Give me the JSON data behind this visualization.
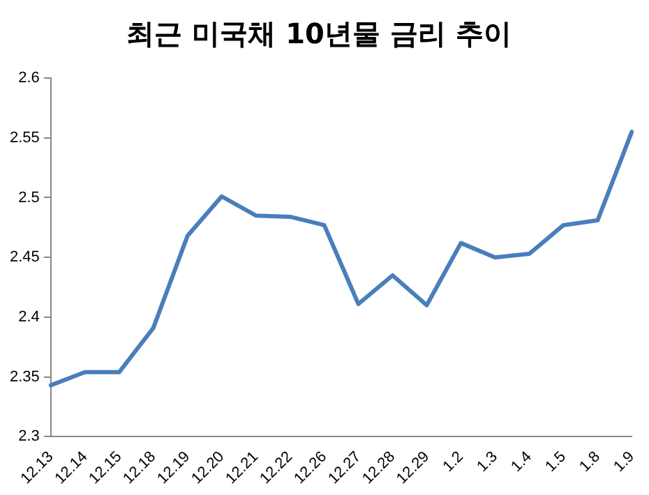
{
  "chart_data": {
    "type": "line",
    "title": "최근 미국채 10년물 금리 추이",
    "categories": [
      "12.13",
      "12.14",
      "12.15",
      "12.18",
      "12.19",
      "12.20",
      "12.21",
      "12.22",
      "12.26",
      "12.27",
      "12.28",
      "12.29",
      "1.2",
      "1.3",
      "1.4",
      "1.5",
      "1.8",
      "1.9"
    ],
    "series": [
      {
        "color": "#4a7ebb",
        "values": [
          2.343,
          2.354,
          2.354,
          2.391,
          2.468,
          2.501,
          2.485,
          2.484,
          2.477,
          2.411,
          2.435,
          2.41,
          2.462,
          2.45,
          2.453,
          2.477,
          2.481,
          2.555
        ]
      }
    ],
    "ylim": [
      2.3,
      2.6
    ],
    "yticks": [
      2.3,
      2.35,
      2.4,
      2.45,
      2.5,
      2.55,
      2.6
    ],
    "grid": false,
    "legend": false,
    "marker": "none",
    "line_style": "solid"
  }
}
